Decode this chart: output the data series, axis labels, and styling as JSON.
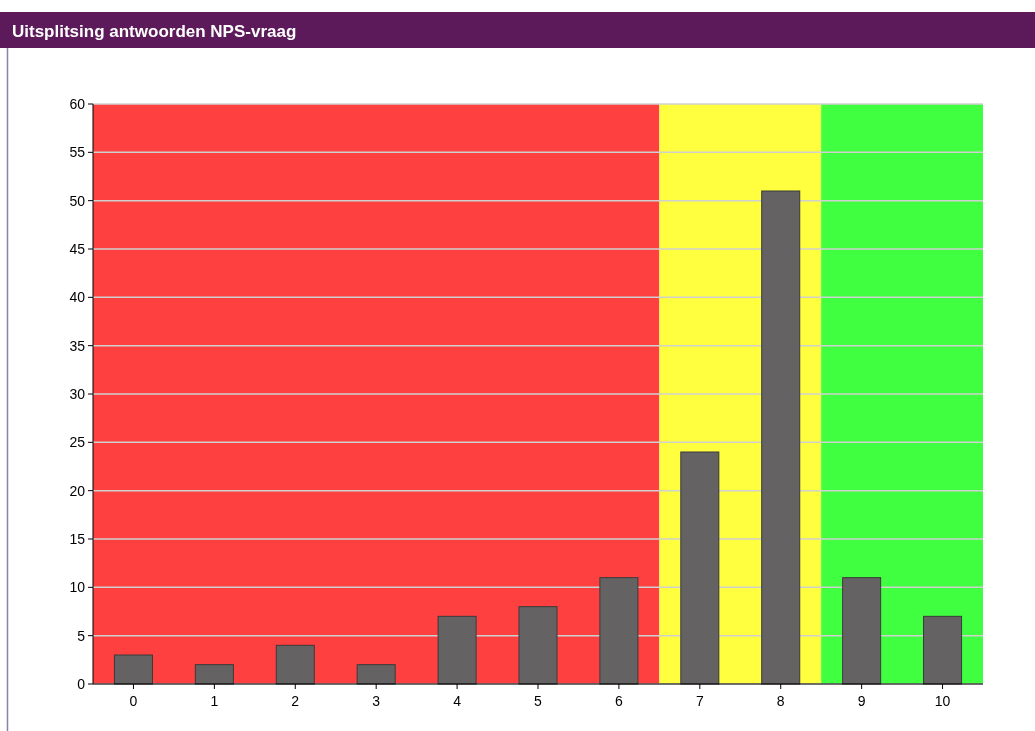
{
  "chart_data": {
    "type": "bar",
    "title": "Uitsplitsing antwoorden NPS-vraag",
    "x": [
      0,
      1,
      2,
      3,
      4,
      5,
      6,
      7,
      8,
      9,
      10
    ],
    "values": [
      3,
      2,
      4,
      2,
      7,
      8,
      11,
      24,
      51,
      11,
      7
    ],
    "color": "#656264",
    "xlim": [
      -0.5,
      10.5
    ],
    "xticks": [
      0,
      1,
      2,
      3,
      4,
      5,
      6,
      7,
      8,
      9,
      10
    ],
    "ylim": [
      0,
      60
    ],
    "yticks": [
      0,
      5,
      10,
      15,
      20,
      25,
      30,
      35,
      40,
      45,
      50,
      55,
      60
    ],
    "grid": "y",
    "bands": [
      {
        "axis": "x",
        "from": -0.5,
        "to": 6.5,
        "color": "#ff4040"
      },
      {
        "axis": "x",
        "from": 6.5,
        "to": 8.5,
        "color": "#ffff40"
      },
      {
        "axis": "x",
        "from": 8.5,
        "to": 10.5,
        "color": "#40ff40"
      }
    ]
  }
}
